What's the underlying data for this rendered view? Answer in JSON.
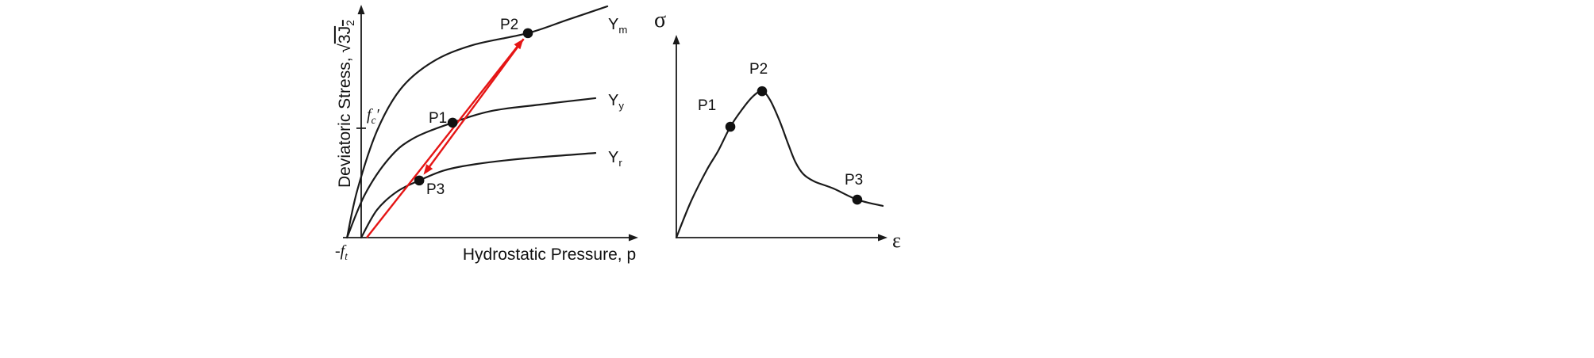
{
  "page": {
    "background": "#ffffff"
  },
  "colors": {
    "curve": "#1a1a1a",
    "axis": "#1a1a1a",
    "path_arrow": "#e51515",
    "marker": "#111111"
  },
  "chart_data": [
    {
      "id": "yield-surfaces",
      "type": "line",
      "xlabel": "Hydrostatic Pressure, p",
      "ylabel": {
        "prefix": "Deviatoric Stress, ",
        "radical": "√",
        "radicand": "3J",
        "subscript": "2"
      },
      "axis_annotations": {
        "fc": {
          "base": "f",
          "sub": "c",
          "prime": "′"
        },
        "ft": {
          "minus": "-",
          "base": "f",
          "sub": "t"
        }
      },
      "axes": {
        "x_range": [
          -8,
          100
        ],
        "y_range": [
          0,
          100
        ],
        "grid": false
      },
      "fc_tick_y": 47.3,
      "series": [
        {
          "name": "maximum-failure-surface",
          "label": {
            "base": "Y",
            "sub": "m"
          },
          "color": "#1a1a1a",
          "points": [
            [
              -5.1,
              0
            ],
            [
              -1.4,
              20.5
            ],
            [
              5.7,
              46.2
            ],
            [
              14.3,
              64.4
            ],
            [
              25.7,
              76.0
            ],
            [
              40.0,
              83.2
            ],
            [
              60.0,
              88.4
            ],
            [
              74.3,
              94.2
            ],
            [
              88.6,
              100
            ]
          ]
        },
        {
          "name": "yield-surface",
          "label": {
            "base": "Y",
            "sub": "y"
          },
          "color": "#1a1a1a",
          "points": [
            [
              -5.1,
              0
            ],
            [
              1.4,
              18.8
            ],
            [
              10.0,
              34.2
            ],
            [
              18.6,
              42.8
            ],
            [
              32.9,
              49.7
            ],
            [
              47.1,
              54.8
            ],
            [
              64.3,
              57.5
            ],
            [
              84.3,
              60.3
            ]
          ]
        },
        {
          "name": "residual-failure-surface",
          "label": {
            "base": "Y",
            "sub": "r"
          },
          "color": "#1a1a1a",
          "points": [
            [
              0,
              0
            ],
            [
              5.7,
              12.0
            ],
            [
              12.9,
              19.9
            ],
            [
              20.9,
              24.7
            ],
            [
              30.0,
              29.1
            ],
            [
              41.4,
              31.8
            ],
            [
              58.6,
              34.2
            ],
            [
              84.3,
              36.6
            ]
          ]
        }
      ],
      "markers": [
        {
          "label": "P1",
          "x": 32.9,
          "y": 49.7
        },
        {
          "label": "P2",
          "x": 60.0,
          "y": 88.4
        },
        {
          "label": "P3",
          "x": 20.9,
          "y": 24.7
        }
      ],
      "arrows": [
        {
          "name": "loading-path",
          "from": [
            2.0,
            0
          ],
          "to": [
            60.0,
            88.4
          ],
          "color": "#e51515"
        },
        {
          "name": "softening-path",
          "from": [
            60.0,
            88.4
          ],
          "to": [
            20.9,
            24.7
          ],
          "color": "#e51515"
        }
      ]
    },
    {
      "id": "stress-strain",
      "type": "line",
      "xlabel": "ε",
      "ylabel": "σ",
      "axes": {
        "x_range": [
          0,
          100
        ],
        "y_range": [
          0,
          100
        ],
        "grid": false
      },
      "series": [
        {
          "name": "stress-strain-curve",
          "color": "#1a1a1a",
          "points": [
            [
              0,
              0
            ],
            [
              6.7,
              17.6
            ],
            [
              14.1,
              33.3
            ],
            [
              19.6,
              43.1
            ],
            [
              25.2,
              54.9
            ],
            [
              30.7,
              63.5
            ],
            [
              35.6,
              69.8
            ],
            [
              40.0,
              72.5
            ],
            [
              43.7,
              68.2
            ],
            [
              48.1,
              58.0
            ],
            [
              52.2,
              46.3
            ],
            [
              55.6,
              37.3
            ],
            [
              59.3,
              31.4
            ],
            [
              64.4,
              27.8
            ],
            [
              73.3,
              24.3
            ],
            [
              84.4,
              18.8
            ],
            [
              96.3,
              15.7
            ]
          ]
        }
      ],
      "markers": [
        {
          "label": "P1",
          "x": 25.2,
          "y": 54.9
        },
        {
          "label": "P2",
          "x": 40.0,
          "y": 72.5
        },
        {
          "label": "P3",
          "x": 84.4,
          "y": 18.8
        }
      ]
    }
  ]
}
